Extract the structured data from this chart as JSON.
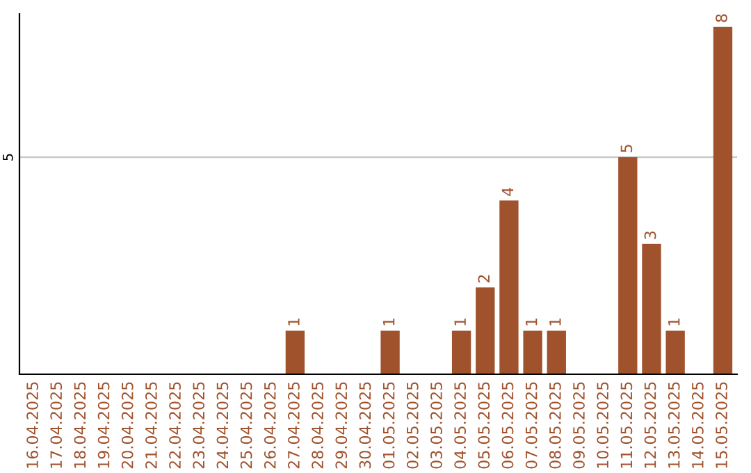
{
  "chart_data": {
    "type": "bar",
    "categories": [
      "16.04.2025",
      "17.04.2025",
      "18.04.2025",
      "19.04.2025",
      "20.04.2025",
      "21.04.2025",
      "22.04.2025",
      "23.04.2025",
      "24.04.2025",
      "25.04.2025",
      "26.04.2025",
      "27.04.2025",
      "28.04.2025",
      "29.04.2025",
      "30.04.2025",
      "01.05.2025",
      "02.05.2025",
      "03.05.2025",
      "04.05.2025",
      "05.05.2025",
      "06.05.2025",
      "07.05.2025",
      "08.05.2025",
      "09.05.2025",
      "10.05.2025",
      "11.05.2025",
      "12.05.2025",
      "13.05.2025",
      "14.05.2025",
      "15.05.2025"
    ],
    "values": [
      0,
      0,
      0,
      0,
      0,
      0,
      0,
      0,
      0,
      0,
      0,
      1,
      0,
      0,
      0,
      1,
      0,
      0,
      1,
      2,
      4,
      1,
      1,
      0,
      0,
      5,
      3,
      1,
      0,
      8
    ],
    "value_labels": [
      null,
      null,
      null,
      null,
      null,
      null,
      null,
      null,
      null,
      null,
      null,
      "1",
      null,
      null,
      null,
      "1",
      null,
      null,
      "1",
      "2",
      "4",
      "1",
      "1",
      null,
      null,
      "5",
      "3",
      "1",
      null,
      "8"
    ],
    "color": "#a0522d",
    "ylim": [
      0,
      8.3
    ],
    "yticks": [
      5
    ],
    "grid": "y"
  }
}
